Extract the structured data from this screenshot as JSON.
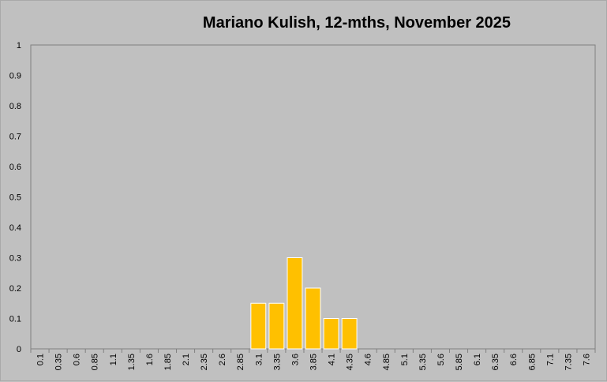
{
  "chart_data": {
    "type": "bar",
    "title": "Mariano Kulish, 12-mths, November 2025",
    "xlabel": "",
    "ylabel": "",
    "categories": [
      "0.1",
      "0.35",
      "0.6",
      "0.85",
      "1.1",
      "1.35",
      "1.6",
      "1.85",
      "2.1",
      "2.35",
      "2.6",
      "2.85",
      "3.1",
      "3.35",
      "3.6",
      "3.85",
      "4.1",
      "4.35",
      "4.6",
      "4.85",
      "5.1",
      "5.35",
      "5.6",
      "5.85",
      "6.1",
      "6.35",
      "6.6",
      "6.85",
      "7.1",
      "7.35",
      "7.6"
    ],
    "values": [
      0,
      0,
      0,
      0,
      0,
      0,
      0,
      0,
      0,
      0,
      0,
      0,
      0.15,
      0.15,
      0.3,
      0.2,
      0.1,
      0.1,
      0,
      0,
      0,
      0,
      0,
      0,
      0,
      0,
      0,
      0,
      0,
      0,
      0
    ],
    "ylim": [
      0,
      1
    ],
    "yticks": [
      "0",
      "0.1",
      "0.2",
      "0.3",
      "0.4",
      "0.5",
      "0.6",
      "0.7",
      "0.8",
      "0.9",
      "1"
    ],
    "grid": false,
    "legend": "none",
    "colors": {
      "bar": "#ffc000",
      "bar_edge": "#ffffff",
      "plot_bg": "#c0c0c0",
      "axis": "#808080"
    }
  }
}
